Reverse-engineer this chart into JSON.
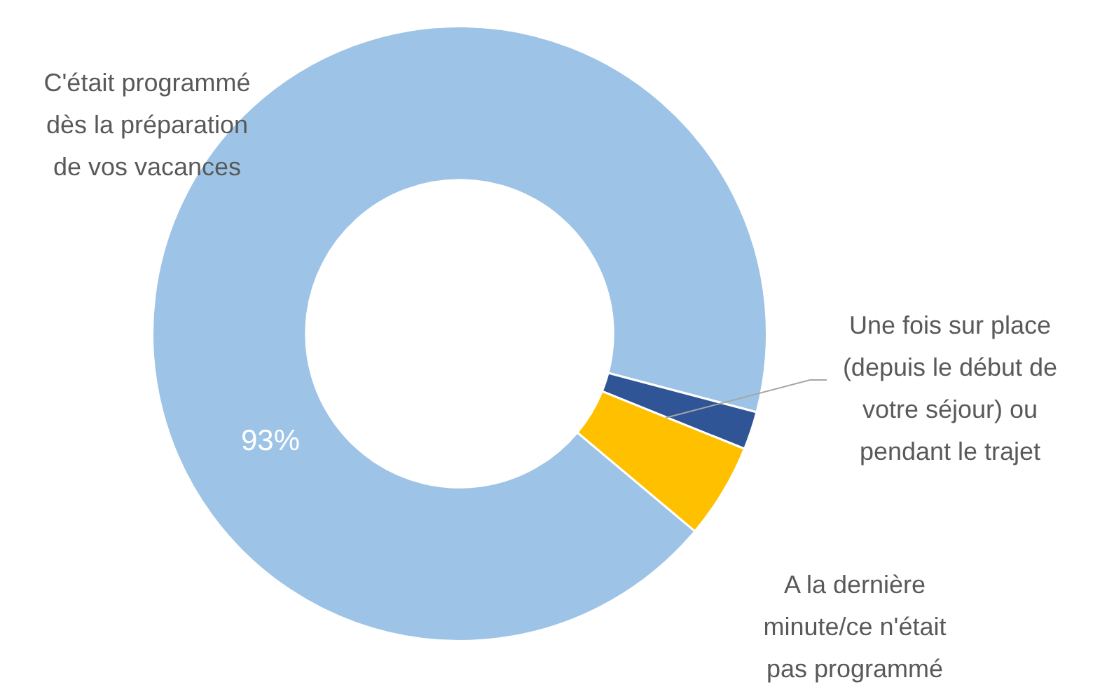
{
  "chart_data": {
    "type": "donut",
    "categories": [
      "C'était programmé dès la préparation de vos vacances",
      "Une fois sur place (depuis le début de votre séjour) ou pendant le trajet",
      "A la dernière minute/ce n'était pas programmé"
    ],
    "values": [
      93,
      2,
      5
    ],
    "colors": [
      "#9dc3e6",
      "#2f5597",
      "#ffc000"
    ],
    "value_labels": [
      "93%",
      null,
      null
    ],
    "legend": false
  }
}
